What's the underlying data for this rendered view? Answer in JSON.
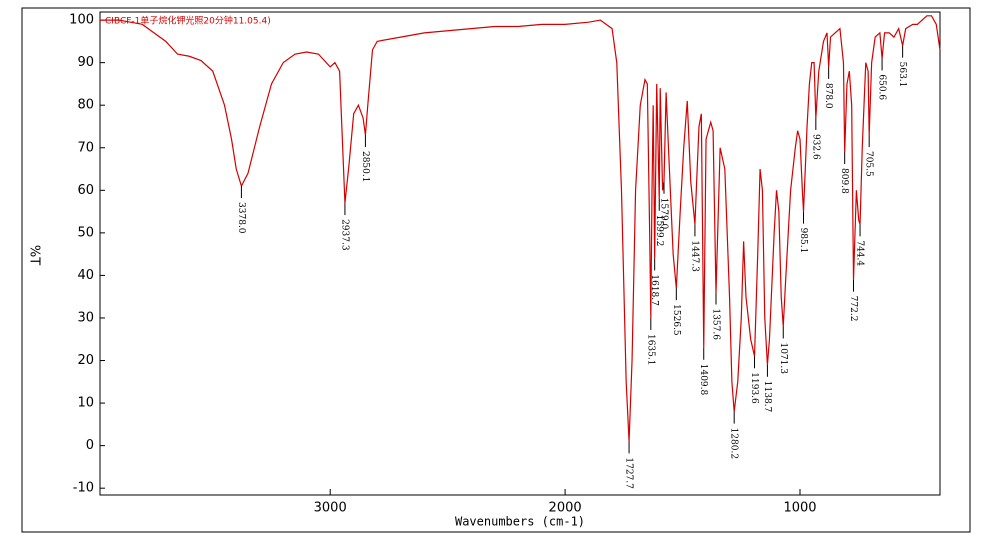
{
  "chart_data": {
    "type": "line",
    "title": "CIBCF-1单子烷化钾光照20分钟11.05.4)",
    "x_label": "Wavenumbers (cm-1)",
    "y_label": "%T",
    "xlim": [
      3980,
      404
    ],
    "ylim": [
      -11.6,
      101.9
    ],
    "xticks": [
      3000,
      2000,
      1000
    ],
    "yticks": [
      -10,
      0,
      10,
      20,
      30,
      40,
      50,
      60,
      70,
      80,
      90,
      100
    ],
    "x": [
      3980,
      3900,
      3800,
      3750,
      3700,
      3650,
      3600,
      3550,
      3500,
      3450,
      3420,
      3400,
      3378,
      3350,
      3300,
      3250,
      3200,
      3150,
      3100,
      3050,
      3000,
      2980,
      2960,
      2937.3,
      2920,
      2900,
      2880,
      2860,
      2850.1,
      2840,
      2820,
      2800,
      2700,
      2600,
      2500,
      2400,
      2300,
      2200,
      2100,
      2000,
      1900,
      1850,
      1800,
      1780,
      1760,
      1740,
      1727.7,
      1715,
      1700,
      1680,
      1660,
      1650,
      1640,
      1635.1,
      1630,
      1625,
      1618.7,
      1610,
      1599.2,
      1595,
      1585,
      1579,
      1570,
      1560,
      1540,
      1526.5,
      1510,
      1495,
      1480,
      1465,
      1447.3,
      1440,
      1430,
      1420,
      1409.8,
      1400,
      1380,
      1370,
      1357.6,
      1340,
      1320,
      1300,
      1290,
      1280.2,
      1265,
      1250,
      1240,
      1230,
      1210,
      1193.6,
      1180,
      1170,
      1160,
      1150,
      1138.7,
      1130,
      1110,
      1100,
      1090,
      1080,
      1071.3,
      1060,
      1040,
      1020,
      1010,
      1000,
      990,
      985.1,
      970,
      960,
      950,
      940,
      932.6,
      920,
      900,
      885,
      878,
      870,
      850,
      830,
      815,
      809.8,
      800,
      790,
      780,
      772.2,
      760,
      750,
      744.4,
      735,
      720,
      710,
      705.5,
      695,
      680,
      660,
      650.6,
      640,
      620,
      600,
      580,
      563.1,
      550,
      520,
      500,
      480,
      460,
      440,
      420,
      404
    ],
    "series": [
      {
        "name": "spectrum",
        "color": "#d40000",
        "values": [
          100,
          100,
          99,
          97,
          95,
          92,
          91.5,
          90.5,
          88,
          80,
          72,
          65,
          61,
          64,
          75,
          85,
          90,
          92,
          92.5,
          92,
          89,
          90,
          88,
          57,
          66,
          78,
          80,
          77,
          73,
          80,
          93,
          95,
          96,
          97,
          97.5,
          98,
          98.5,
          98.5,
          99,
          99,
          99.5,
          100,
          98,
          90,
          60,
          15,
          1,
          20,
          60,
          80,
          86,
          85,
          50,
          30,
          60,
          80,
          44,
          85,
          58,
          84,
          60,
          62,
          83,
          70,
          45,
          37,
          55,
          70,
          81,
          62,
          52,
          62,
          75,
          78,
          23,
          72,
          76,
          74,
          36,
          70,
          65,
          35,
          15,
          8,
          15,
          30,
          48,
          35,
          25,
          21,
          45,
          65,
          60,
          30,
          19,
          25,
          50,
          60,
          55,
          35,
          28,
          40,
          60,
          70,
          74,
          72,
          60,
          55,
          75,
          85,
          90,
          90,
          77,
          88,
          95,
          97,
          89,
          96,
          97,
          98,
          90,
          69,
          85,
          88,
          80,
          39,
          60,
          53,
          52,
          70,
          90,
          88,
          73,
          90,
          96,
          97,
          91,
          97,
          97,
          96,
          98,
          94,
          98,
          99,
          99,
          100,
          101,
          101,
          99,
          93
        ]
      }
    ],
    "peaks": [
      {
        "label": "3378.0",
        "x": 3378.0,
        "y": 61
      },
      {
        "label": "2937.3",
        "x": 2937.3,
        "y": 57
      },
      {
        "label": "2850.1",
        "x": 2850.1,
        "y": 73
      },
      {
        "label": "1727.7",
        "x": 1727.7,
        "y": 1
      },
      {
        "label": "1635.1",
        "x": 1635.1,
        "y": 30
      },
      {
        "label": "1618.7",
        "x": 1618.7,
        "y": 44
      },
      {
        "label": "1599.2",
        "x": 1599.2,
        "y": 58
      },
      {
        "label": "1579.0",
        "x": 1579.0,
        "y": 62
      },
      {
        "label": "1526.5",
        "x": 1526.5,
        "y": 37
      },
      {
        "label": "1447.3",
        "x": 1447.3,
        "y": 52
      },
      {
        "label": "1409.8",
        "x": 1409.8,
        "y": 23
      },
      {
        "label": "1357.6",
        "x": 1357.6,
        "y": 36
      },
      {
        "label": "1280.2",
        "x": 1280.2,
        "y": 8
      },
      {
        "label": "1193.6",
        "x": 1193.6,
        "y": 21
      },
      {
        "label": "1138.7",
        "x": 1138.7,
        "y": 19
      },
      {
        "label": "1071.3",
        "x": 1071.3,
        "y": 28
      },
      {
        "label": "985.1",
        "x": 985.1,
        "y": 55
      },
      {
        "label": "932.6",
        "x": 932.6,
        "y": 77
      },
      {
        "label": "878.0",
        "x": 878.0,
        "y": 89
      },
      {
        "label": "809.8",
        "x": 809.8,
        "y": 69
      },
      {
        "label": "772.2",
        "x": 772.2,
        "y": 39
      },
      {
        "label": "744.4",
        "x": 744.4,
        "y": 52
      },
      {
        "label": "705.5",
        "x": 705.5,
        "y": 73
      },
      {
        "label": "650.6",
        "x": 650.6,
        "y": 91
      },
      {
        "label": "563.1",
        "x": 563.1,
        "y": 94
      }
    ]
  }
}
